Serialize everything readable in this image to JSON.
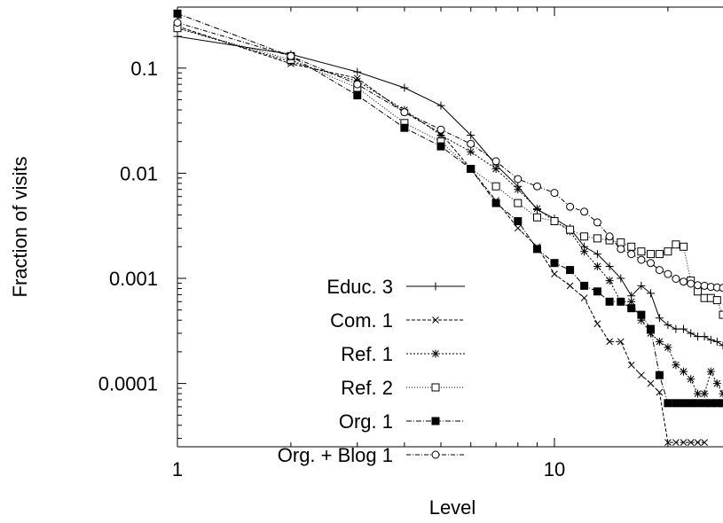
{
  "chart_data": {
    "type": "line",
    "title": "",
    "xlabel": "Level",
    "ylabel": "Fraction of visits",
    "xscale": "log",
    "yscale": "log",
    "xlim": [
      1,
      28
    ],
    "ylim": [
      2.5e-05,
      0.38
    ],
    "xticks": [
      {
        "value": 1,
        "label": "1"
      },
      {
        "value": 10,
        "label": "10"
      }
    ],
    "yticks": [
      {
        "value": 0.1,
        "label": "0.1"
      },
      {
        "value": 0.01,
        "label": "0.01"
      },
      {
        "value": 0.001,
        "label": "0.001"
      },
      {
        "value": 0.0001,
        "label": "0.0001"
      }
    ],
    "grid": false,
    "legend_position": "bottom-left",
    "series": [
      {
        "name": "Educ. 3",
        "marker": "plus",
        "dash": "",
        "x": [
          1,
          2,
          3,
          4,
          5,
          6,
          7,
          8,
          9,
          10,
          11,
          12,
          13,
          14,
          15,
          16,
          17,
          18,
          19,
          20,
          21,
          22,
          23,
          24,
          25,
          26,
          27,
          28
        ],
        "y": [
          0.2,
          0.135,
          0.092,
          0.065,
          0.044,
          0.023,
          0.012,
          0.0075,
          0.0045,
          0.0037,
          0.003,
          0.002,
          0.0017,
          0.0013,
          0.001,
          0.00068,
          0.00085,
          0.00072,
          0.00042,
          0.00036,
          0.00033,
          0.00033,
          0.0003,
          0.00028,
          0.00028,
          0.00026,
          0.00025,
          0.00023
        ]
      },
      {
        "name": "Com. 1",
        "marker": "cross",
        "dash": "4,2",
        "x": [
          1,
          2,
          3,
          4,
          5,
          6,
          7,
          8,
          9,
          10,
          11,
          12,
          13,
          14,
          15,
          16,
          17,
          18,
          19,
          20,
          21,
          22,
          23,
          24,
          25
        ],
        "y": [
          0.25,
          0.11,
          0.08,
          0.038,
          0.024,
          0.011,
          0.0055,
          0.003,
          0.002,
          0.0011,
          0.00085,
          0.00065,
          0.00037,
          0.00025,
          0.00025,
          0.00015,
          0.00012,
          0.0001,
          8.25e-05,
          2.75e-05,
          2.75e-05,
          2.75e-05,
          2.75e-05,
          2.75e-05,
          2.75e-05
        ]
      },
      {
        "name": "Ref. 1",
        "marker": "star",
        "dash": "2,2",
        "x": [
          1,
          2,
          3,
          4,
          5,
          6,
          7,
          8,
          9,
          10,
          11,
          12,
          13,
          14,
          15,
          16,
          17,
          18,
          19,
          20,
          21,
          22,
          23,
          24,
          25,
          26,
          27,
          28
        ],
        "y": [
          0.24,
          0.115,
          0.075,
          0.04,
          0.023,
          0.016,
          0.011,
          0.007,
          0.0046,
          0.0035,
          0.0028,
          0.0018,
          0.0013,
          0.00095,
          0.0006,
          0.0006,
          0.0004,
          0.0003,
          0.00025,
          0.00022,
          0.00015,
          0.00013,
          0.00011,
          8e-05,
          8e-05,
          0.00013,
          0.0001,
          8e-05
        ]
      },
      {
        "name": "Ref. 2",
        "marker": "open-square",
        "dash": "1,2",
        "x": [
          1,
          2,
          3,
          4,
          5,
          6,
          7,
          8,
          9,
          10,
          11,
          12,
          13,
          14,
          15,
          16,
          17,
          18,
          19,
          20,
          21,
          22,
          23,
          24,
          25,
          26,
          27,
          28
        ],
        "y": [
          0.24,
          0.12,
          0.065,
          0.03,
          0.02,
          0.011,
          0.0075,
          0.0052,
          0.0038,
          0.0035,
          0.0029,
          0.0025,
          0.0024,
          0.0023,
          0.0022,
          0.002,
          0.0018,
          0.0017,
          0.0017,
          0.0018,
          0.0021,
          0.002,
          0.00095,
          0.00075,
          0.00065,
          0.00065,
          0.00062,
          0.00045
        ]
      },
      {
        "name": "Org. 1",
        "marker": "filled-square",
        "dash": "6,2,1,2",
        "x": [
          1,
          2,
          3,
          4,
          5,
          6,
          7,
          8,
          9,
          10,
          11,
          12,
          13,
          14,
          15,
          16,
          17,
          18,
          19,
          20,
          21,
          22,
          23,
          24,
          25,
          26,
          27,
          28
        ],
        "y": [
          0.33,
          0.13,
          0.055,
          0.027,
          0.018,
          0.011,
          0.0052,
          0.0035,
          0.0019,
          0.0014,
          0.0012,
          0.00085,
          0.00075,
          0.0006,
          0.0006,
          0.00052,
          0.00045,
          0.00033,
          0.00012,
          6.5e-05,
          6.5e-05,
          6.5e-05,
          6.5e-05,
          6.5e-05,
          6.5e-05,
          6.5e-05,
          6.5e-05,
          6.5e-05
        ]
      },
      {
        "name": "Org. + Blog 1",
        "marker": "open-circle",
        "dash": "5,2,1,2",
        "x": [
          1,
          2,
          3,
          4,
          5,
          6,
          7,
          8,
          9,
          10,
          11,
          12,
          13,
          14,
          15,
          16,
          17,
          18,
          19,
          20,
          21,
          22,
          23,
          24,
          25,
          26,
          27,
          28
        ],
        "y": [
          0.27,
          0.13,
          0.07,
          0.038,
          0.026,
          0.019,
          0.013,
          0.0088,
          0.0075,
          0.0065,
          0.0048,
          0.0043,
          0.0034,
          0.0025,
          0.0019,
          0.0017,
          0.0015,
          0.0014,
          0.0012,
          0.0011,
          0.00099,
          0.00093,
          0.00089,
          0.00086,
          0.00085,
          0.00083,
          0.00082,
          0.00081
        ]
      }
    ]
  }
}
